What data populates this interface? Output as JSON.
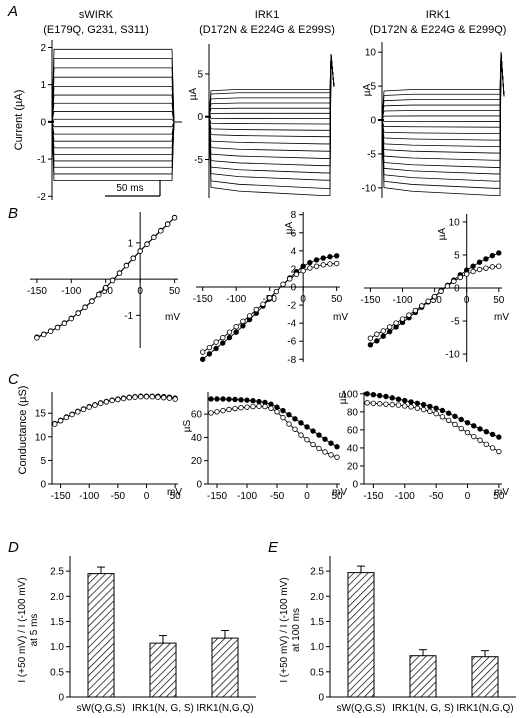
{
  "panel_labels": [
    "A",
    "B",
    "C",
    "D",
    "E"
  ],
  "traces": {
    "titles": [
      [
        "sWIRK",
        "(E179Q, G231, S311)"
      ],
      [
        "IRK1",
        "(D172N & E224G & E299S)"
      ],
      [
        "IRK1",
        "(D172N & E224G & E299Q)"
      ]
    ],
    "y_label": "Current (µA)",
    "unit_label": "µA",
    "scale_bar": "50 ms",
    "ticks": [
      [
        -2,
        -1,
        0,
        1,
        2
      ],
      [
        -5,
        0,
        5
      ],
      [
        -10,
        -5,
        0,
        5,
        10
      ]
    ],
    "steady_levels": [
      [
        1.95,
        1.7,
        1.45,
        1.2,
        0.95,
        0.72,
        0.5,
        0.28,
        0.07,
        -0.13,
        -0.33,
        -0.52,
        -0.7,
        -0.88,
        -1.05,
        -1.22,
        -1.4,
        -1.58
      ],
      [
        3.2,
        2.8,
        2.2,
        1.6,
        1.0,
        0.4,
        -0.2,
        -0.8,
        -1.5,
        -2.2,
        -3.0,
        -3.8,
        -4.6,
        -5.4,
        -6.2,
        -7.0,
        -7.9,
        -8.7
      ],
      [
        4.5,
        3.8,
        3.0,
        2.2,
        1.4,
        0.6,
        -0.2,
        -1.0,
        -1.9,
        -2.8,
        -3.7,
        -4.6,
        -5.6,
        -6.6,
        -7.5,
        -8.5,
        -9.5,
        -10.5
      ]
    ]
  },
  "chart_data": [
    {
      "type": "line",
      "panel": "B",
      "x_unit": "mV",
      "y_unit": "",
      "x_ticks": [
        -150,
        -100,
        -50,
        0,
        50
      ],
      "y_ticks": [
        -1,
        1
      ],
      "series": [
        {
          "marker": "filled",
          "x": [
            -150,
            -140,
            -130,
            -120,
            -110,
            -100,
            -90,
            -80,
            -70,
            -60,
            -50,
            -40,
            -30,
            -20,
            -10,
            0,
            10,
            20,
            30,
            40,
            50
          ],
          "y": [
            -1.6,
            -1.52,
            -1.43,
            -1.33,
            -1.21,
            -1.08,
            -0.93,
            -0.77,
            -0.6,
            -0.42,
            -0.23,
            -0.03,
            0.17,
            0.38,
            0.58,
            0.78,
            0.97,
            1.16,
            1.34,
            1.52,
            1.7
          ]
        },
        {
          "marker": "open",
          "x": [
            -150,
            -140,
            -130,
            -120,
            -110,
            -100,
            -90,
            -80,
            -70,
            -60,
            -50,
            -40,
            -30,
            -20,
            -10,
            0,
            10,
            20,
            30,
            40,
            50
          ],
          "y": [
            -1.62,
            -1.53,
            -1.44,
            -1.34,
            -1.22,
            -1.09,
            -0.94,
            -0.78,
            -0.61,
            -0.43,
            -0.24,
            -0.04,
            0.16,
            0.37,
            0.57,
            0.77,
            0.96,
            1.15,
            1.33,
            1.51,
            1.69
          ]
        }
      ]
    },
    {
      "type": "line",
      "panel": "B",
      "x_unit": "mV",
      "y_unit": "µA",
      "x_ticks": [
        -150,
        -100,
        -50,
        0,
        50
      ],
      "y_ticks": [
        -8,
        -6,
        -4,
        -2,
        0,
        2,
        4,
        6,
        8
      ],
      "series": [
        {
          "marker": "filled",
          "x": [
            -150,
            -140,
            -130,
            -120,
            -110,
            -100,
            -90,
            -80,
            -70,
            -60,
            -50,
            -40,
            -30,
            -20,
            -10,
            0,
            10,
            20,
            30,
            40,
            50
          ],
          "y": [
            -8.0,
            -7.4,
            -6.8,
            -6.2,
            -5.6,
            -5.0,
            -4.3,
            -3.6,
            -2.9,
            -2.1,
            -1.3,
            -0.5,
            0.3,
            1.0,
            1.7,
            2.3,
            2.7,
            3.0,
            3.2,
            3.35,
            3.45
          ]
        },
        {
          "marker": "open",
          "x": [
            -150,
            -140,
            -130,
            -120,
            -110,
            -100,
            -90,
            -80,
            -70,
            -60,
            -50,
            -40,
            -30,
            -20,
            -10,
            0,
            10,
            20,
            30,
            40,
            50
          ],
          "y": [
            -7.2,
            -6.7,
            -6.1,
            -5.6,
            -5.0,
            -4.4,
            -3.8,
            -3.2,
            -2.5,
            -1.9,
            -1.2,
            -0.5,
            0.3,
            0.9,
            1.4,
            1.8,
            2.1,
            2.3,
            2.45,
            2.55,
            2.6
          ]
        }
      ]
    },
    {
      "type": "line",
      "panel": "B",
      "x_unit": "mV",
      "y_unit": "µA",
      "x_ticks": [
        -150,
        -100,
        -50,
        0,
        50
      ],
      "y_ticks": [
        -10,
        -5,
        0,
        5,
        10
      ],
      "series": [
        {
          "marker": "filled",
          "x": [
            -150,
            -140,
            -130,
            -120,
            -110,
            -100,
            -90,
            -80,
            -70,
            -60,
            -50,
            -40,
            -30,
            -20,
            -10,
            0,
            10,
            20,
            30,
            40,
            50
          ],
          "y": [
            -8.6,
            -8.0,
            -7.3,
            -6.6,
            -5.9,
            -5.2,
            -4.5,
            -3.7,
            -2.9,
            -2.1,
            -1.3,
            -0.4,
            0.4,
            1.2,
            2.0,
            2.7,
            3.3,
            3.9,
            4.4,
            4.9,
            5.3
          ]
        },
        {
          "marker": "open",
          "x": [
            -150,
            -140,
            -130,
            -120,
            -110,
            -100,
            -90,
            -80,
            -70,
            -60,
            -50,
            -40,
            -30,
            -20,
            -10,
            0,
            10,
            20,
            30,
            40,
            50
          ],
          "y": [
            -7.6,
            -7.0,
            -6.5,
            -5.9,
            -5.3,
            -4.7,
            -4.1,
            -3.4,
            -2.7,
            -2.0,
            -1.3,
            -0.5,
            0.3,
            1.0,
            1.6,
            2.1,
            2.5,
            2.8,
            3.0,
            3.2,
            3.3
          ]
        }
      ]
    },
    {
      "type": "line",
      "panel": "C",
      "x_unit": "mV",
      "y_label": "Conductance (µS)",
      "x_ticks": [
        -150,
        -100,
        -50,
        0,
        50
      ],
      "y_ticks": [
        0,
        5,
        10,
        15
      ],
      "ylim": [
        0,
        19
      ],
      "series": [
        {
          "marker": "filled",
          "x": [
            -160,
            -150,
            -140,
            -130,
            -120,
            -110,
            -100,
            -90,
            -80,
            -70,
            -60,
            -50,
            -40,
            -30,
            -20,
            -10,
            0,
            10,
            20,
            30,
            40,
            50
          ],
          "y": [
            12.8,
            13.5,
            14.2,
            14.8,
            15.4,
            15.9,
            16.4,
            16.8,
            17.2,
            17.5,
            17.8,
            18.0,
            18.2,
            18.4,
            18.5,
            18.6,
            18.6,
            18.6,
            18.6,
            18.5,
            18.4,
            18.2
          ]
        },
        {
          "marker": "open",
          "x": [
            -160,
            -150,
            -140,
            -130,
            -120,
            -110,
            -100,
            -90,
            -80,
            -70,
            -60,
            -50,
            -40,
            -30,
            -20,
            -10,
            0,
            10,
            20,
            30,
            40,
            50
          ],
          "y": [
            12.7,
            13.4,
            14.1,
            14.7,
            15.3,
            15.8,
            16.3,
            16.7,
            17.1,
            17.4,
            17.7,
            17.9,
            18.1,
            18.3,
            18.4,
            18.5,
            18.5,
            18.5,
            18.4,
            18.3,
            18.2,
            18.0
          ]
        }
      ]
    },
    {
      "type": "line",
      "panel": "C",
      "x_unit": "mV",
      "y_unit": "µS",
      "x_ticks": [
        -150,
        -100,
        -50,
        0,
        50
      ],
      "y_ticks": [
        0,
        20,
        40,
        60
      ],
      "ylim": [
        0,
        78
      ],
      "series": [
        {
          "marker": "filled",
          "x": [
            -160,
            -150,
            -140,
            -130,
            -120,
            -110,
            -100,
            -90,
            -80,
            -70,
            -60,
            -50,
            -40,
            -30,
            -20,
            -10,
            0,
            10,
            20,
            30,
            40,
            50
          ],
          "y": [
            73,
            73,
            73,
            72.8,
            72.6,
            72.3,
            72,
            71.5,
            70.8,
            70,
            68.5,
            66,
            63,
            59.5,
            56,
            52.5,
            49,
            45.5,
            42,
            38.5,
            35,
            32
          ]
        },
        {
          "marker": "open",
          "x": [
            -160,
            -150,
            -140,
            -130,
            -120,
            -110,
            -100,
            -90,
            -80,
            -70,
            -60,
            -50,
            -40,
            -30,
            -20,
            -10,
            0,
            10,
            20,
            30,
            40,
            50
          ],
          "y": [
            61,
            62,
            63,
            64,
            64.8,
            65.5,
            66,
            66.5,
            66.8,
            66.5,
            65,
            62,
            57,
            51.5,
            47,
            42,
            38,
            34,
            30.5,
            27.5,
            25,
            23
          ]
        }
      ]
    },
    {
      "type": "line",
      "panel": "C",
      "x_unit": "mV",
      "y_unit": "µS",
      "x_ticks": [
        -150,
        -100,
        -50,
        0,
        50
      ],
      "y_ticks": [
        0,
        20,
        40,
        60,
        80,
        100
      ],
      "ylim": [
        0,
        100
      ],
      "series": [
        {
          "marker": "filled",
          "x": [
            -160,
            -150,
            -140,
            -130,
            -120,
            -110,
            -100,
            -90,
            -80,
            -70,
            -60,
            -50,
            -40,
            -30,
            -20,
            -10,
            0,
            10,
            20,
            30,
            40,
            50
          ],
          "y": [
            100,
            99,
            98,
            97,
            95.5,
            94,
            92.5,
            91,
            89.5,
            88,
            86,
            84,
            81.5,
            78.5,
            75,
            71.5,
            68,
            64.5,
            61,
            58,
            55,
            52
          ]
        },
        {
          "marker": "open",
          "x": [
            -160,
            -150,
            -140,
            -130,
            -120,
            -110,
            -100,
            -90,
            -80,
            -70,
            -60,
            -50,
            -40,
            -30,
            -20,
            -10,
            0,
            10,
            20,
            30,
            40,
            50
          ],
          "y": [
            90,
            89.5,
            89,
            88.5,
            88,
            87.5,
            86.5,
            85.5,
            84,
            82.5,
            80.5,
            78,
            74.5,
            70.5,
            66,
            61.5,
            57,
            52.5,
            48.5,
            44,
            40,
            36
          ]
        }
      ]
    },
    {
      "type": "bar",
      "panel": "D",
      "ylabel": [
        "I (+50 mV) / I (-100 mV)",
        "at 5 ms"
      ],
      "categories": [
        "sW(Q,G,S)",
        "IRK1(N, G, S)",
        "IRK1(N,G,Q)"
      ],
      "values": [
        2.45,
        1.07,
        1.17
      ],
      "errors": [
        0.13,
        0.15,
        0.15
      ],
      "y_ticks": [
        0,
        0.5,
        1.0,
        1.5,
        2.0,
        2.5
      ],
      "ylim": [
        0,
        2.8
      ]
    },
    {
      "type": "bar",
      "panel": "E",
      "ylabel": [
        "I (+50 mV) / I (-100 mV)",
        "at 100 ms"
      ],
      "categories": [
        "sW(Q,G,S)",
        "IRK1(N, G, S)",
        "IRK1(N,G,Q)"
      ],
      "values": [
        2.47,
        0.82,
        0.8
      ],
      "errors": [
        0.13,
        0.12,
        0.12
      ],
      "y_ticks": [
        0,
        0.5,
        1.0,
        1.5,
        2.0,
        2.5
      ],
      "ylim": [
        0,
        2.8
      ]
    }
  ]
}
